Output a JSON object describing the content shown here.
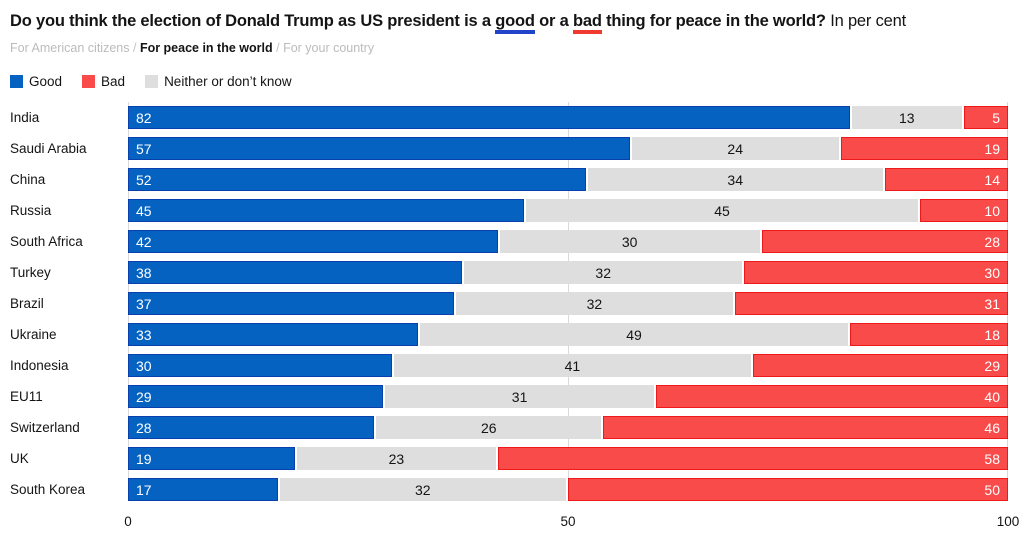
{
  "header": {
    "title": {
      "part1": "Do you think the election of Donald Trump as US president is a ",
      "good_word": "good",
      "part2": " or a ",
      "bad_word": "bad",
      "part3": " thing for peace in the world?",
      "suffix": "In per cent"
    },
    "tabs": [
      {
        "label": "For American citizens",
        "active": false
      },
      {
        "label": "For peace in the world",
        "active": true
      },
      {
        "label": "For your country",
        "active": false
      }
    ],
    "tab_separator": "/"
  },
  "legend": {
    "items": [
      {
        "label": "Good",
        "color": "#0562C1"
      },
      {
        "label": "Bad",
        "color": "#FA4B4B"
      },
      {
        "label": "Neither or don’t know",
        "color": "#DEDEDE"
      }
    ]
  },
  "chart_data": {
    "type": "bar",
    "orientation": "horizontal",
    "stacked": true,
    "title": "Do you think the election of Donald Trump as US president is a good or a bad thing for peace in the world?",
    "unit": "In per cent",
    "categories": [
      "India",
      "Saudi Arabia",
      "China",
      "Russia",
      "South Africa",
      "Turkey",
      "Brazil",
      "Ukraine",
      "Indonesia",
      "EU11",
      "Switzerland",
      "UK",
      "South Korea"
    ],
    "series": [
      {
        "name": "Good",
        "color": "#0562C1",
        "border": "#0A3FAE",
        "values": [
          82,
          57,
          52,
          45,
          42,
          38,
          37,
          33,
          30,
          29,
          28,
          19,
          17
        ]
      },
      {
        "name": "Bad",
        "color": "#FA4B4B",
        "border": "#F01919",
        "values": [
          5,
          19,
          14,
          10,
          28,
          30,
          31,
          18,
          29,
          40,
          46,
          58,
          50
        ]
      },
      {
        "name": "Neither or don’t know",
        "color": "#DEDEDE",
        "border": "#DEDEDE",
        "values": [
          13,
          24,
          34,
          45,
          30,
          32,
          32,
          49,
          41,
          31,
          26,
          23,
          32
        ]
      }
    ],
    "xlim": [
      0,
      100
    ],
    "x_ticks": [
      "0",
      "50",
      "100"
    ],
    "grid": true,
    "gridline_color": "#D9D9D9",
    "legend_position": "top"
  }
}
